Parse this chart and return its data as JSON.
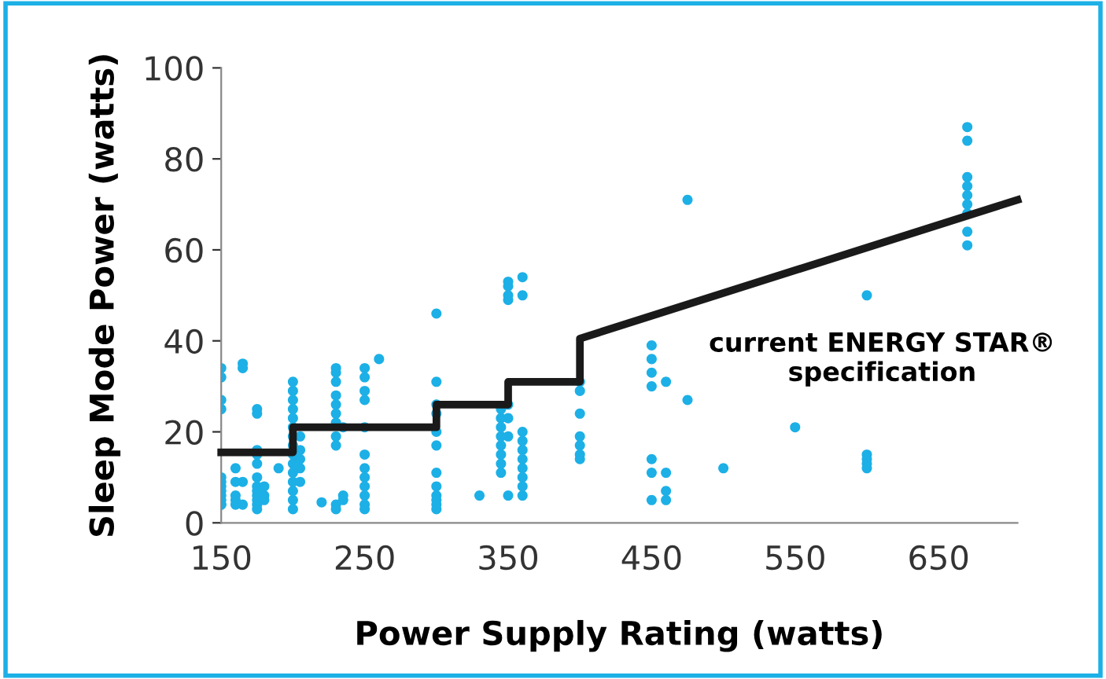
{
  "chart_data": {
    "type": "scatter",
    "xlabel": "Power Supply Rating (watts)",
    "ylabel": "Sleep Mode Power (watts)",
    "xlim": [
      150,
      705
    ],
    "xticks": [
      150,
      250,
      350,
      450,
      550,
      650
    ],
    "ylim": [
      0,
      100
    ],
    "yticks": [
      0,
      20,
      40,
      60,
      80,
      100
    ],
    "grid": false,
    "legend": false,
    "marker": "circle",
    "annotations": [
      "current ENERGY STAR®\nspecification"
    ],
    "series": [
      {
        "color": "#1cb0e6",
        "x": [
          150,
          150,
          150,
          150,
          150,
          150,
          150,
          150,
          150,
          150,
          150,
          150,
          160,
          160,
          160,
          160,
          160,
          165,
          165,
          165,
          165,
          175,
          175,
          175,
          175,
          175,
          175,
          175,
          175,
          175,
          175,
          175,
          175,
          180,
          180,
          180,
          190,
          200,
          200,
          200,
          200,
          200,
          200,
          200,
          200,
          200,
          200,
          200,
          200,
          200,
          200,
          200,
          205,
          205,
          205,
          205,
          205,
          220,
          230,
          230,
          230,
          230,
          230,
          230,
          230,
          230,
          230,
          230,
          230,
          235,
          235,
          235,
          250,
          250,
          250,
          250,
          250,
          250,
          250,
          250,
          250,
          250,
          250,
          250,
          260,
          300,
          300,
          300,
          300,
          300,
          300,
          300,
          300,
          300,
          300,
          300,
          300,
          330,
          345,
          345,
          345,
          345,
          345,
          345,
          345,
          345,
          350,
          350,
          350,
          350,
          350,
          350,
          350,
          350,
          360,
          360,
          360,
          360,
          360,
          360,
          360,
          360,
          360,
          360,
          400,
          400,
          400,
          400,
          400,
          400,
          400,
          450,
          450,
          450,
          450,
          450,
          450,
          450,
          460,
          460,
          460,
          460,
          475,
          475,
          500,
          550,
          600,
          600,
          600,
          600,
          600,
          670,
          670,
          670,
          670,
          670,
          670,
          670,
          670,
          670
        ],
        "values": [
          34,
          32,
          27,
          25,
          10,
          9,
          8,
          7,
          6,
          5,
          4,
          4,
          12,
          9,
          6,
          5,
          4,
          35,
          34,
          9,
          4,
          25,
          24,
          16,
          15,
          13,
          10,
          8,
          7,
          6,
          5,
          4,
          3,
          8,
          6,
          5,
          12,
          31,
          29,
          27,
          25,
          23,
          21,
          19,
          17,
          15,
          13,
          11,
          9,
          7,
          5,
          3,
          19,
          16,
          14,
          12,
          9,
          4.5,
          34,
          33,
          31,
          28,
          26,
          24,
          22,
          19,
          17,
          4,
          3,
          5,
          6,
          21,
          34,
          32,
          29,
          27,
          21,
          15,
          12,
          10,
          8,
          6,
          4,
          3,
          36,
          46,
          31,
          26,
          24,
          20,
          17,
          11,
          8,
          6,
          5,
          4,
          3,
          6,
          25,
          23,
          21,
          19,
          17,
          15,
          13,
          11,
          53,
          52,
          50,
          49,
          26,
          23,
          19,
          6,
          54,
          50,
          20,
          18,
          16,
          14,
          12,
          10,
          8,
          6,
          31,
          29,
          24,
          19,
          17,
          15,
          14,
          39,
          36,
          33,
          30,
          14,
          11,
          5,
          31,
          11,
          7,
          5,
          71,
          27,
          12,
          21,
          50,
          15,
          14,
          13,
          12,
          87,
          84,
          76,
          74,
          72,
          70,
          68,
          64,
          61
        ]
      },
      {
        "type": "line",
        "color": "#1a1a1a",
        "line_style": "solid",
        "marker": "none",
        "x": [
          150,
          200,
          200,
          300,
          300,
          350,
          350,
          400,
          400,
          705
        ],
        "values": [
          15.5,
          15.5,
          21,
          21,
          26,
          26,
          31,
          31,
          40.5,
          71
        ]
      }
    ]
  }
}
